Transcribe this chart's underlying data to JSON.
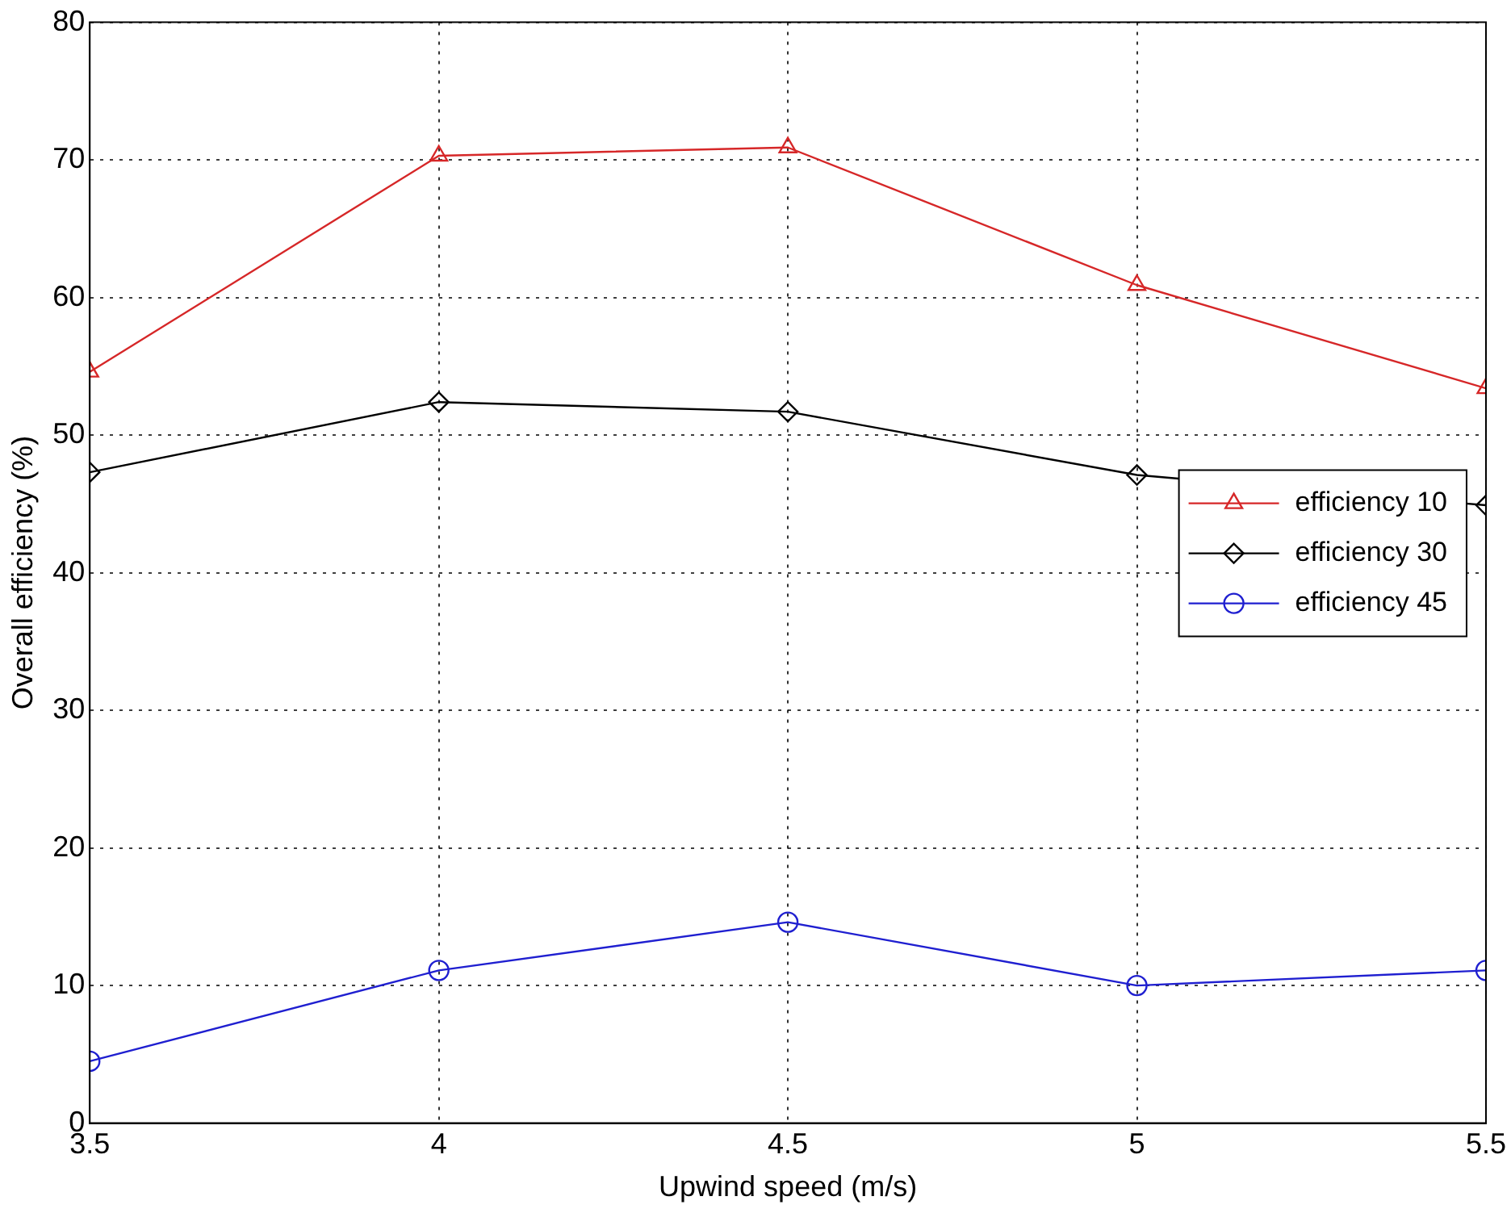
{
  "chart_data": {
    "type": "line",
    "xlabel": "Upwind speed (m/s)",
    "ylabel": "Overall efficiency (%)",
    "x": [
      3.5,
      4,
      4.5,
      5,
      5.5
    ],
    "xlim": [
      3.5,
      5.5
    ],
    "xticks": [
      3.5,
      4,
      4.5,
      5,
      5.5
    ],
    "ylim": [
      0,
      80
    ],
    "yticks": [
      0,
      10,
      20,
      30,
      40,
      50,
      60,
      70,
      80
    ],
    "grid": true,
    "legend": "right",
    "line_style": "solid",
    "series": [
      {
        "name": "efficiency 10",
        "color": "#d62728",
        "marker": "triangle",
        "values": [
          54.6,
          70.3,
          70.9,
          60.9,
          53.4
        ]
      },
      {
        "name": "efficiency 30",
        "color": "#000000",
        "marker": "diamond",
        "values": [
          47.3,
          52.4,
          51.7,
          47.1,
          44.9
        ]
      },
      {
        "name": "efficiency 45",
        "color": "#1f1fd0",
        "marker": "circle",
        "values": [
          4.5,
          11.1,
          14.6,
          10.0,
          11.1
        ]
      }
    ]
  }
}
